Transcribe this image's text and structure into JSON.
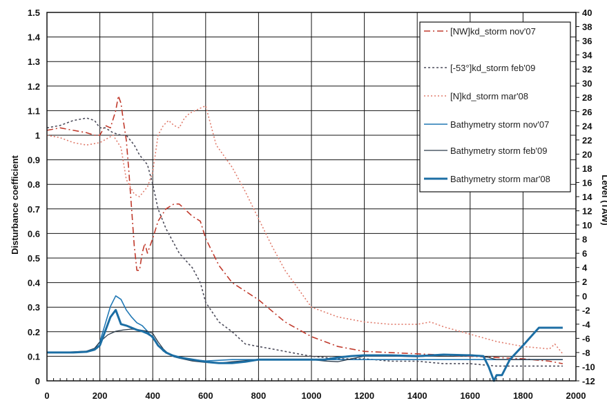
{
  "chart_data": {
    "type": "line",
    "title": "",
    "xlabel": "",
    "ylabel": "Disturbance coefficient",
    "y2label": "Level (TAW)",
    "xlim": [
      0,
      2000
    ],
    "ylim": [
      0,
      1.5
    ],
    "y2lim": [
      -12,
      40
    ],
    "grid": true,
    "legend_position": "top-right",
    "x_ticks": [
      "0",
      "200",
      "400",
      "600",
      "800",
      "1000",
      "1200",
      "1400",
      "1600",
      "1800",
      "2000"
    ],
    "y_ticks": [
      "0",
      "0.1",
      "0.2",
      "0.3",
      "0.4",
      "0.5",
      "0.6",
      "0.7",
      "0.8",
      "0.9",
      "1",
      "1.1",
      "1.2",
      "1.3",
      "1.4",
      "1.5"
    ],
    "y2_ticks": [
      "-12",
      "-10",
      "-8",
      "-6",
      "-4",
      "-2",
      "0",
      "2",
      "4",
      "6",
      "8",
      "10",
      "12",
      "14",
      "16",
      "18",
      "20",
      "22",
      "24",
      "26",
      "28",
      "30",
      "32",
      "34",
      "36",
      "38",
      "40"
    ],
    "series": [
      {
        "name": "[NW]kd_storm nov'07",
        "axis": "left",
        "color": "#c0392b",
        "dash": "9,4,2,4",
        "x": [
          0,
          50,
          100,
          150,
          180,
          200,
          220,
          240,
          260,
          270,
          280,
          290,
          300,
          310,
          320,
          330,
          340,
          350,
          360,
          370,
          380,
          400,
          420,
          450,
          480,
          500,
          520,
          550,
          580,
          600,
          650,
          700,
          800,
          900,
          1000,
          1100,
          1200,
          1400,
          1600,
          1800,
          1900,
          1950
        ],
        "y": [
          1.02,
          1.03,
          1.02,
          1.01,
          1.0,
          1.0,
          1.04,
          1.03,
          1.1,
          1.16,
          1.13,
          1.05,
          0.98,
          0.85,
          0.7,
          0.55,
          0.45,
          0.45,
          0.52,
          0.56,
          0.52,
          0.58,
          0.65,
          0.7,
          0.72,
          0.72,
          0.7,
          0.67,
          0.65,
          0.58,
          0.47,
          0.4,
          0.33,
          0.24,
          0.18,
          0.14,
          0.12,
          0.11,
          0.1,
          0.09,
          0.08,
          0.07
        ]
      },
      {
        "name": "[-53°]kd_storm feb'09",
        "axis": "left",
        "color": "#4b4b5a",
        "dash": "3,3",
        "x": [
          0,
          50,
          100,
          150,
          180,
          200,
          220,
          250,
          280,
          300,
          330,
          350,
          380,
          400,
          420,
          450,
          500,
          550,
          580,
          600,
          650,
          700,
          750,
          800,
          850,
          900,
          1000,
          1100,
          1200,
          1300,
          1400,
          1500,
          1600,
          1700,
          1800,
          1950
        ],
        "y": [
          1.03,
          1.04,
          1.06,
          1.07,
          1.06,
          1.03,
          1.03,
          1.01,
          1.0,
          1.0,
          0.96,
          0.92,
          0.88,
          0.8,
          0.7,
          0.62,
          0.52,
          0.46,
          0.4,
          0.32,
          0.24,
          0.2,
          0.15,
          0.14,
          0.13,
          0.12,
          0.1,
          0.09,
          0.09,
          0.08,
          0.08,
          0.07,
          0.07,
          0.06,
          0.06,
          0.06
        ]
      },
      {
        "name": "[N]kd_storm mar'08",
        "axis": "left",
        "color": "#e07a6a",
        "dash": "2,3",
        "x": [
          0,
          50,
          100,
          150,
          200,
          250,
          280,
          300,
          330,
          350,
          380,
          400,
          420,
          440,
          460,
          480,
          500,
          520,
          540,
          560,
          580,
          600,
          640,
          700,
          750,
          800,
          850,
          900,
          1000,
          1100,
          1200,
          1300,
          1400,
          1450,
          1500,
          1600,
          1700,
          1800,
          1900,
          1920,
          1950
        ],
        "y": [
          1.0,
          0.99,
          0.97,
          0.96,
          0.97,
          1.0,
          0.95,
          0.82,
          0.76,
          0.75,
          0.79,
          0.85,
          1.0,
          1.04,
          1.06,
          1.04,
          1.03,
          1.07,
          1.09,
          1.1,
          1.11,
          1.12,
          0.96,
          0.87,
          0.77,
          0.66,
          0.55,
          0.45,
          0.3,
          0.26,
          0.24,
          0.23,
          0.23,
          0.24,
          0.22,
          0.19,
          0.16,
          0.14,
          0.13,
          0.15,
          0.11
        ]
      },
      {
        "name": "Bathymetry storm nov'07",
        "axis": "right",
        "color": "#1f77b4",
        "width": 1.6,
        "x": [
          0,
          50,
          100,
          150,
          180,
          200,
          220,
          240,
          260,
          280,
          300,
          320,
          340,
          360,
          380,
          400,
          420,
          440,
          460,
          480,
          500,
          550,
          600,
          650,
          700,
          800,
          1000,
          1200,
          1400,
          1600,
          1700,
          1800,
          1900,
          1950
        ],
        "y": [
          -8.0,
          -8.0,
          -8.0,
          -7.9,
          -7.5,
          -6.5,
          -4.0,
          -1.5,
          0.0,
          -0.5,
          -2.0,
          -3.0,
          -3.8,
          -4.2,
          -5.0,
          -6.0,
          -7.0,
          -7.8,
          -8.2,
          -8.4,
          -8.6,
          -9.0,
          -9.2,
          -9.1,
          -9.0,
          -9.0,
          -9.0,
          -9.0,
          -9.0,
          -9.0,
          -9.0,
          -9.0,
          -9.0,
          -9.0
        ]
      },
      {
        "name": "Bathymetry storm feb'09",
        "axis": "right",
        "color": "#2a3a4a",
        "width": 1.3,
        "x": [
          0,
          50,
          100,
          150,
          180,
          200,
          230,
          260,
          290,
          320,
          350,
          380,
          400,
          420,
          440,
          460,
          480,
          500,
          550,
          600,
          650,
          700,
          800,
          900,
          1000,
          1050,
          1100,
          1200,
          1300,
          1400,
          1500,
          1600,
          1650,
          1700,
          1800,
          1900,
          1950
        ],
        "y": [
          -8.0,
          -8.0,
          -7.9,
          -7.8,
          -7.4,
          -6.5,
          -5.5,
          -5.0,
          -4.8,
          -4.7,
          -4.8,
          -5.0,
          -5.3,
          -6.5,
          -7.5,
          -8.2,
          -8.6,
          -8.8,
          -9.2,
          -9.4,
          -9.5,
          -9.3,
          -9.0,
          -9.0,
          -9.0,
          -9.2,
          -9.3,
          -8.5,
          -8.5,
          -8.6,
          -8.4,
          -8.3,
          -8.5,
          -9.0,
          -9.0,
          -9.0,
          -9.0
        ]
      },
      {
        "name": "Bathymetry storm mar'08",
        "axis": "right",
        "color": "#1c6ea4",
        "width": 3,
        "x": [
          0,
          50,
          100,
          150,
          180,
          200,
          220,
          240,
          260,
          280,
          300,
          320,
          340,
          360,
          380,
          400,
          420,
          450,
          480,
          500,
          550,
          600,
          620,
          650,
          700,
          750,
          800,
          1000,
          1050,
          1100,
          1150,
          1200,
          1300,
          1400,
          1500,
          1600,
          1650,
          1670,
          1690,
          1700,
          1720,
          1750,
          1800,
          1860,
          1950
        ],
        "y": [
          -8.0,
          -8.0,
          -8.0,
          -7.9,
          -7.6,
          -7.0,
          -5.0,
          -3.0,
          -2.0,
          -4.0,
          -4.2,
          -4.5,
          -4.8,
          -5.0,
          -5.3,
          -5.8,
          -7.0,
          -8.0,
          -8.5,
          -8.7,
          -9.0,
          -9.3,
          -9.4,
          -9.5,
          -9.5,
          -9.3,
          -9.0,
          -9.0,
          -9.0,
          -8.7,
          -8.5,
          -8.4,
          -8.4,
          -8.5,
          -8.3,
          -8.4,
          -8.5,
          -10.0,
          -12.0,
          -11.2,
          -11.2,
          -9.0,
          -7.0,
          -4.5,
          -4.5
        ]
      }
    ]
  }
}
